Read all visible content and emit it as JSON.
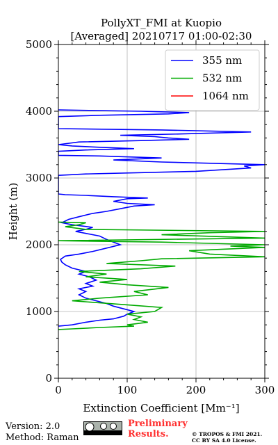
{
  "chart_data": {
    "type": "line",
    "title": "PollyXT_FMI at Kuopio",
    "subtitle": "[Averaged] 20210717 01:00-02:30",
    "xlabel": "Extinction Coefficient [Mm⁻¹]",
    "ylabel": "Height (m)",
    "xlim": [
      0,
      300
    ],
    "ylim": [
      0,
      5000
    ],
    "xticks": [
      "0",
      "100",
      "200",
      "300"
    ],
    "yticks": [
      "0",
      "1000",
      "2000",
      "3000",
      "4000",
      "5000"
    ],
    "grid": true,
    "legend_position": "top-right",
    "series": [
      {
        "name": "355 nm",
        "color": "#0000ff",
        "points": [
          [
            0,
            780
          ],
          [
            20,
            800
          ],
          [
            40,
            840
          ],
          [
            60,
            870
          ],
          [
            80,
            890
          ],
          [
            95,
            930
          ],
          [
            100,
            960
          ],
          [
            110,
            1000
          ],
          [
            95,
            1040
          ],
          [
            80,
            1080
          ],
          [
            70,
            1120
          ],
          [
            55,
            1160
          ],
          [
            40,
            1200
          ],
          [
            30,
            1250
          ],
          [
            40,
            1300
          ],
          [
            30,
            1340
          ],
          [
            50,
            1380
          ],
          [
            40,
            1420
          ],
          [
            55,
            1470
          ],
          [
            45,
            1520
          ],
          [
            30,
            1560
          ],
          [
            40,
            1600
          ],
          [
            20,
            1650
          ],
          [
            10,
            1700
          ],
          [
            5,
            1740
          ],
          [
            3,
            1780
          ],
          [
            10,
            1830
          ],
          [
            30,
            1860
          ],
          [
            50,
            1900
          ],
          [
            70,
            1950
          ],
          [
            90,
            2000
          ],
          [
            80,
            2040
          ],
          [
            70,
            2080
          ],
          [
            60,
            2130
          ],
          [
            40,
            2170
          ],
          [
            25,
            2200
          ],
          [
            40,
            2230
          ],
          [
            50,
            2260
          ],
          [
            20,
            2300
          ],
          [
            5,
            2330
          ],
          [
            15,
            2380
          ],
          [
            30,
            2420
          ],
          [
            50,
            2470
          ],
          [
            70,
            2500
          ],
          [
            90,
            2540
          ],
          [
            110,
            2580
          ],
          [
            140,
            2600
          ],
          [
            100,
            2620
          ],
          [
            80,
            2650
          ],
          [
            100,
            2690
          ],
          [
            130,
            2700
          ],
          [
            80,
            2720
          ],
          [
            40,
            2740
          ],
          [
            10,
            2750
          ],
          [
            0,
            2760
          ],
          [
            0,
            3040
          ],
          [
            40,
            3060
          ],
          [
            120,
            3080
          ],
          [
            200,
            3100
          ],
          [
            280,
            3150
          ],
          [
            270,
            3180
          ],
          [
            300,
            3200
          ],
          [
            150,
            3240
          ],
          [
            80,
            3270
          ],
          [
            150,
            3300
          ],
          [
            60,
            3330
          ],
          [
            0,
            3340
          ],
          [
            0,
            3400
          ],
          [
            40,
            3420
          ],
          [
            110,
            3440
          ],
          [
            60,
            3460
          ],
          [
            20,
            3480
          ],
          [
            0,
            3500
          ],
          [
            30,
            3540
          ],
          [
            120,
            3560
          ],
          [
            190,
            3580
          ],
          [
            160,
            3600
          ],
          [
            140,
            3620
          ],
          [
            90,
            3640
          ],
          [
            180,
            3660
          ],
          [
            280,
            3690
          ],
          [
            150,
            3720
          ],
          [
            0,
            3740
          ],
          [
            0,
            3920
          ],
          [
            60,
            3940
          ],
          [
            160,
            3960
          ],
          [
            190,
            3980
          ],
          [
            120,
            4000
          ],
          [
            0,
            4020
          ]
        ]
      },
      {
        "name": "532 nm",
        "color": "#00aa00",
        "points": [
          [
            0,
            730
          ],
          [
            20,
            740
          ],
          [
            60,
            760
          ],
          [
            110,
            780
          ],
          [
            100,
            800
          ],
          [
            130,
            840
          ],
          [
            110,
            880
          ],
          [
            120,
            920
          ],
          [
            100,
            960
          ],
          [
            140,
            1000
          ],
          [
            150,
            1060
          ],
          [
            100,
            1100
          ],
          [
            20,
            1160
          ],
          [
            60,
            1200
          ],
          [
            130,
            1250
          ],
          [
            110,
            1300
          ],
          [
            160,
            1360
          ],
          [
            100,
            1400
          ],
          [
            60,
            1440
          ],
          [
            100,
            1480
          ],
          [
            40,
            1520
          ],
          [
            70,
            1560
          ],
          [
            30,
            1600
          ],
          [
            120,
            1640
          ],
          [
            170,
            1680
          ],
          [
            70,
            1720
          ],
          [
            120,
            1760
          ],
          [
            150,
            1790
          ],
          [
            300,
            1820
          ],
          [
            220,
            1860
          ],
          [
            190,
            1910
          ],
          [
            300,
            1960
          ],
          [
            250,
            1980
          ],
          [
            300,
            2000
          ],
          [
            150,
            2040
          ],
          [
            0,
            2060
          ],
          [
            300,
            2100
          ],
          [
            150,
            2150
          ],
          [
            220,
            2180
          ],
          [
            300,
            2200
          ],
          [
            40,
            2230
          ],
          [
            10,
            2270
          ],
          [
            30,
            2300
          ],
          [
            40,
            2330
          ],
          [
            0,
            2340
          ]
        ]
      },
      {
        "name": "1064 nm",
        "color": "#ff0000",
        "points": []
      }
    ]
  },
  "footer": {
    "version": "Version: 2.0",
    "method": "Method: Raman",
    "preliminary_line1": "Preliminary",
    "preliminary_line2": "Results.",
    "copyright_line1": "© TROPOS & FMI 2021.",
    "copyright_line2": "CC BY SA 4.0 License."
  }
}
